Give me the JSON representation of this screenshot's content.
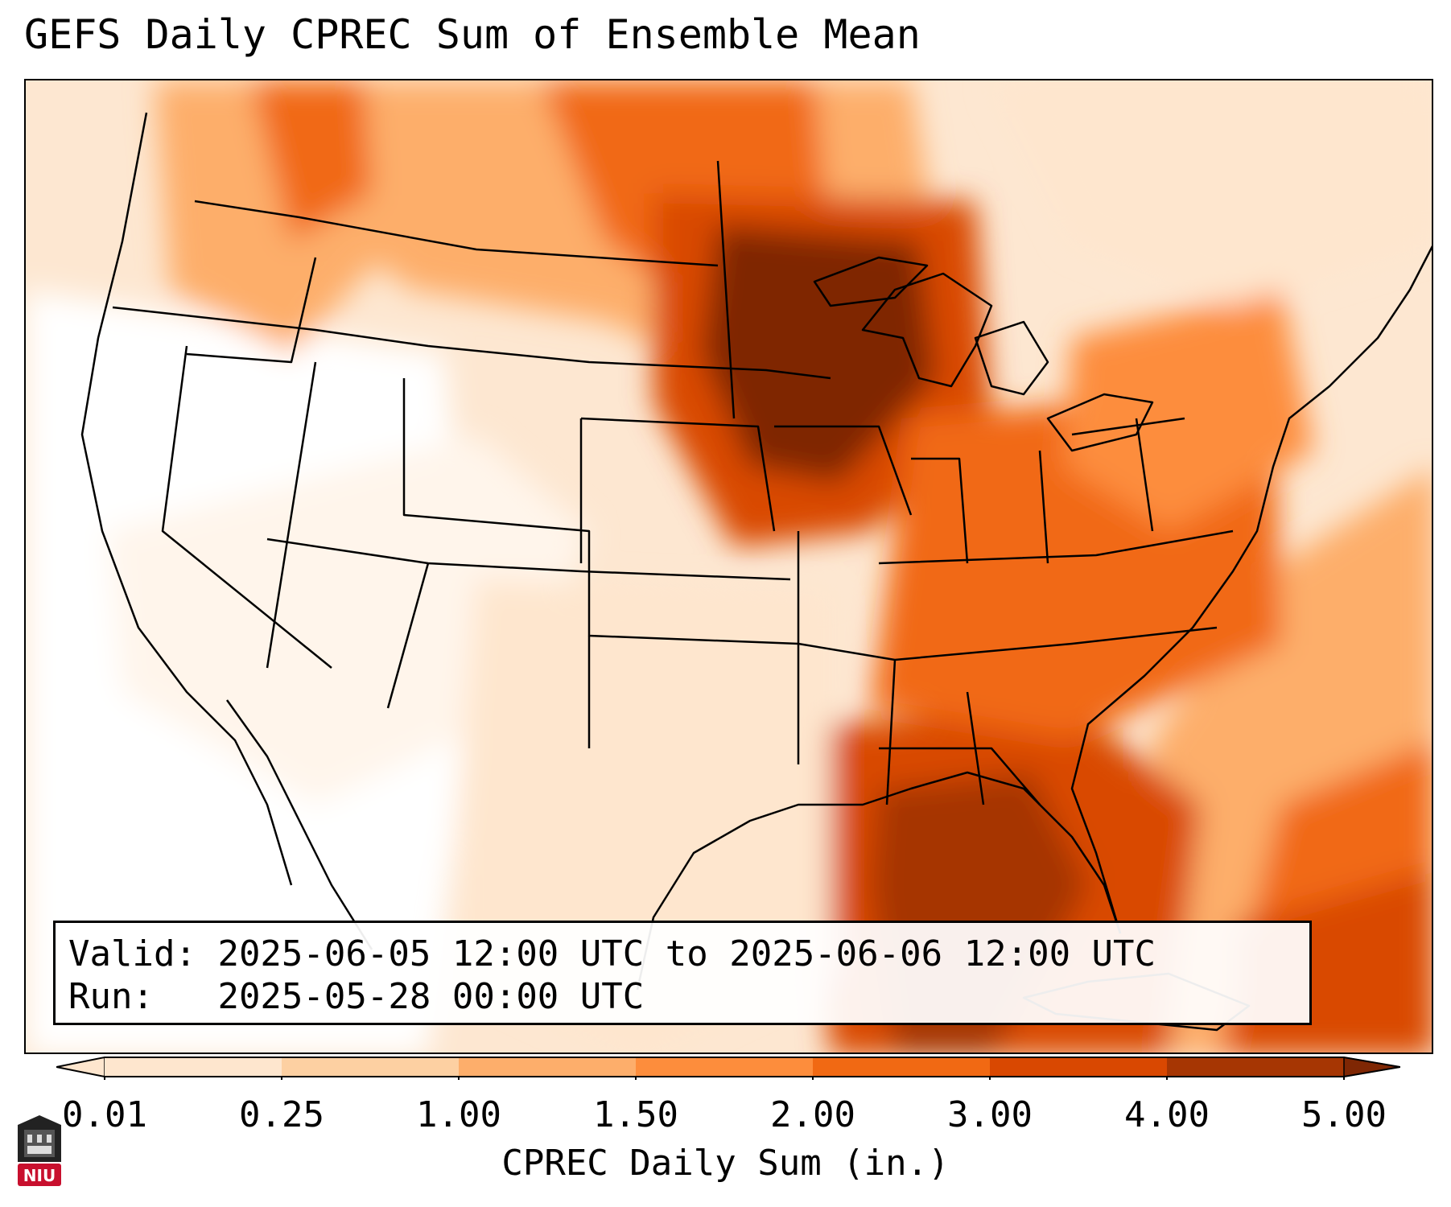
{
  "title": "GEFS Daily CPREC Sum of Ensemble Mean",
  "info": {
    "valid_label": "Valid:",
    "valid_value": "2025-06-05 12:00 UTC to 2025-06-06 12:00 UTC",
    "run_label": "Run:",
    "run_value": "2025-05-28 00:00 UTC"
  },
  "colorbar": {
    "label": "CPREC Daily Sum (in.)",
    "ticks": [
      "0.01",
      "0.25",
      "1.00",
      "1.50",
      "2.00",
      "3.00",
      "4.00",
      "5.00"
    ],
    "colors": [
      "#fee6ce",
      "#fdd0a2",
      "#fdae6b",
      "#fd8d3c",
      "#f16913",
      "#d94801",
      "#a63603",
      "#7f2704"
    ],
    "extend": "both"
  },
  "logo": {
    "text": "NIU",
    "accent": "#c8102e"
  },
  "map": {
    "region": "Contiguous United States",
    "field": "GEFS ensemble mean daily convective precipitation",
    "heavy_areas": [
      "Minnesota",
      "Iowa",
      "Wisconsin",
      "Nebraska",
      "South Dakota",
      "Louisiana",
      "Mississippi",
      "Gulf of Mexico",
      "Western Atlantic"
    ],
    "dry_areas": [
      "California",
      "Nevada",
      "Utah",
      "Arizona",
      "New Mexico",
      "Western Texas"
    ]
  }
}
